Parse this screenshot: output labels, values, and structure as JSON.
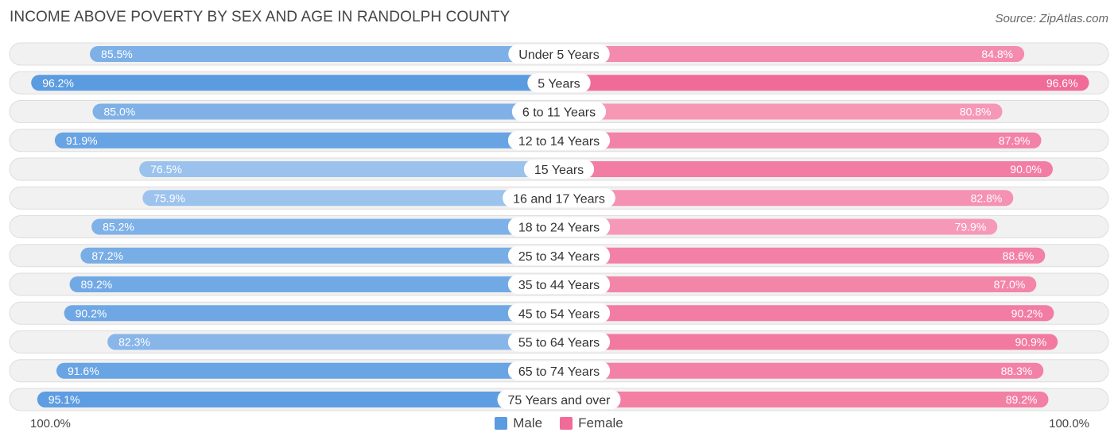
{
  "title": "INCOME ABOVE POVERTY BY SEX AND AGE IN RANDOLPH COUNTY",
  "source": "Source: ZipAtlas.com",
  "axis": {
    "left_label": "100.0%",
    "right_label": "100.0%"
  },
  "legend": {
    "male": {
      "label": "Male",
      "color": "#5b9be0"
    },
    "female": {
      "label": "Female",
      "color": "#f06b97"
    }
  },
  "colors": {
    "male_dark": "#5b9be0",
    "male_light": "#a9cbf0",
    "female_dark": "#f06b97",
    "female_light": "#f9b0c8",
    "row_bg": "#f1f1f1",
    "row_border": "#dddddd"
  },
  "chart_data": {
    "type": "bar",
    "orientation": "horizontal-diverging",
    "title": "INCOME ABOVE POVERTY BY SEX AND AGE IN RANDOLPH COUNTY",
    "categories": [
      "Under 5 Years",
      "5 Years",
      "6 to 11 Years",
      "12 to 14 Years",
      "15 Years",
      "16 and 17 Years",
      "18 to 24 Years",
      "25 to 34 Years",
      "35 to 44 Years",
      "45 to 54 Years",
      "55 to 64 Years",
      "65 to 74 Years",
      "75 Years and over"
    ],
    "series": [
      {
        "name": "Male",
        "values": [
          85.5,
          96.2,
          85.0,
          91.9,
          76.5,
          75.9,
          85.2,
          87.2,
          89.2,
          90.2,
          82.3,
          91.6,
          95.1
        ],
        "labels": [
          "85.5%",
          "96.2%",
          "85.0%",
          "91.9%",
          "76.5%",
          "75.9%",
          "85.2%",
          "87.2%",
          "89.2%",
          "90.2%",
          "82.3%",
          "91.6%",
          "95.1%"
        ]
      },
      {
        "name": "Female",
        "values": [
          84.8,
          96.6,
          80.8,
          87.9,
          90.0,
          82.8,
          79.9,
          88.6,
          87.0,
          90.2,
          90.9,
          88.3,
          89.2
        ],
        "labels": [
          "84.8%",
          "96.6%",
          "80.8%",
          "87.9%",
          "90.0%",
          "82.8%",
          "79.9%",
          "88.6%",
          "87.0%",
          "90.2%",
          "90.9%",
          "88.3%",
          "89.2%"
        ]
      }
    ],
    "xlim": [
      0,
      100
    ],
    "xlabel_left": "100.0%",
    "xlabel_right": "100.0%",
    "legend_position": "bottom-center"
  }
}
